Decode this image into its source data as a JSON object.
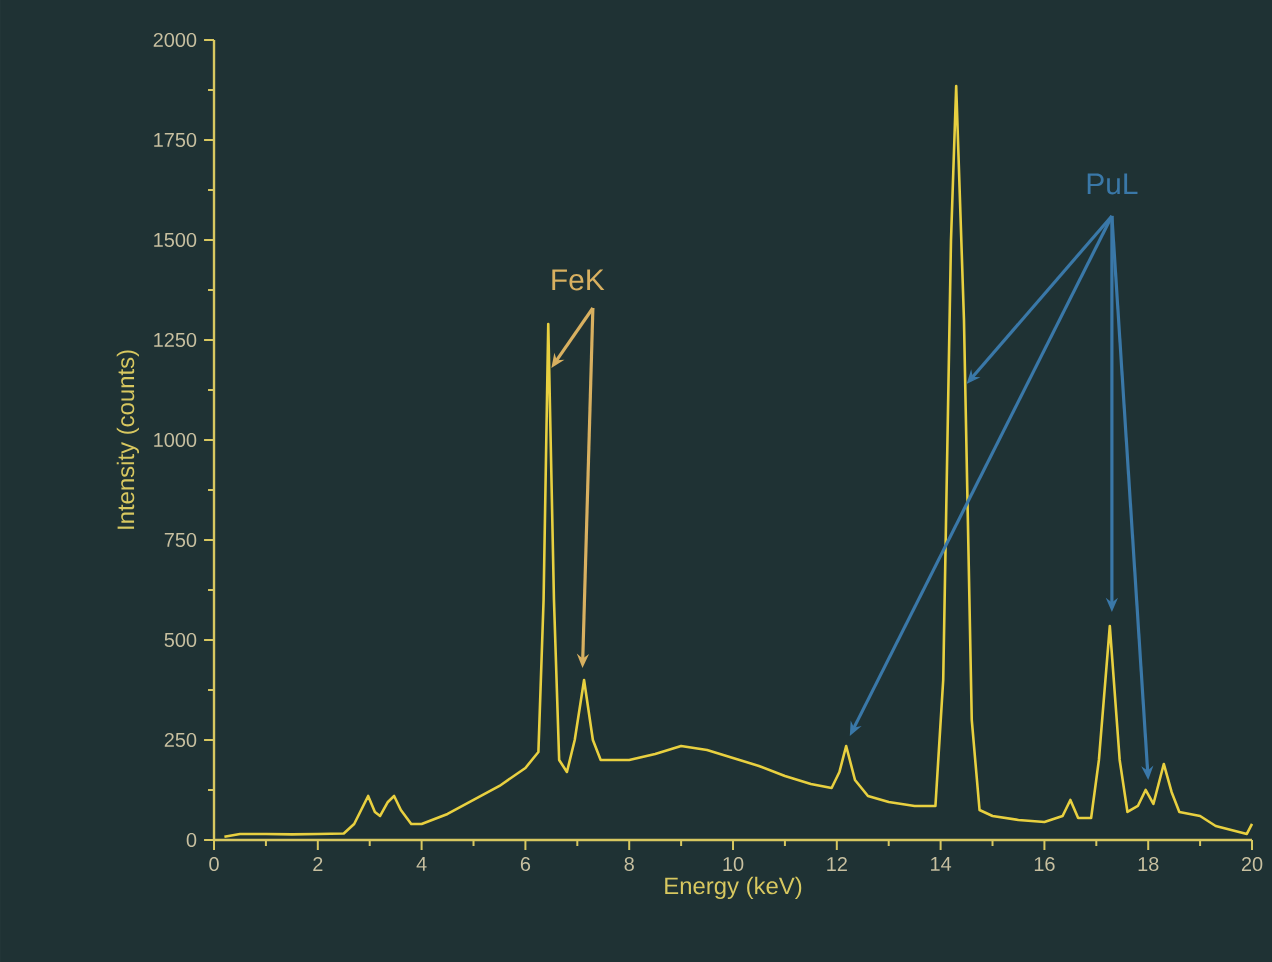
{
  "chart_data": {
    "type": "line",
    "xlabel": "Energy (keV)",
    "ylabel": "Intensity (counts)",
    "color": "#e8d040",
    "x": [
      0.2,
      0.5,
      1,
      1.5,
      2,
      2.5,
      2.7,
      2.97,
      3.1,
      3.2,
      3.35,
      3.47,
      3.6,
      3.8,
      4,
      4.5,
      5,
      5.5,
      6,
      6.25,
      6.35,
      6.44,
      6.55,
      6.65,
      6.8,
      6.95,
      7.13,
      7.3,
      7.45,
      8,
      8.5,
      9,
      9.5,
      10,
      10.5,
      11,
      11.5,
      11.9,
      12.05,
      12.18,
      12.35,
      12.6,
      13,
      13.5,
      13.9,
      14.05,
      14.2,
      14.3,
      14.45,
      14.6,
      14.75,
      15,
      15.5,
      16,
      16.35,
      16.5,
      16.65,
      16.9,
      17.05,
      17.26,
      17.45,
      17.6,
      17.8,
      17.95,
      18.1,
      18.3,
      18.45,
      18.6,
      18.8,
      19,
      19.3,
      19.6,
      19.9,
      20
    ],
    "values": [
      8,
      15,
      15,
      14,
      15,
      16,
      40,
      110,
      70,
      60,
      95,
      110,
      75,
      40,
      40,
      65,
      100,
      135,
      180,
      220,
      600,
      1290,
      600,
      200,
      170,
      250,
      400,
      250,
      200,
      200,
      215,
      235,
      225,
      205,
      185,
      160,
      140,
      130,
      170,
      235,
      150,
      110,
      95,
      85,
      85,
      400,
      1500,
      1885,
      1300,
      300,
      75,
      60,
      50,
      45,
      60,
      100,
      55,
      55,
      200,
      535,
      200,
      70,
      85,
      125,
      90,
      190,
      120,
      70,
      65,
      60,
      35,
      25,
      15,
      40
    ],
    "xlim": [
      0,
      20
    ],
    "ylim": [
      0,
      2000
    ],
    "xticks": [
      0,
      2,
      4,
      6,
      8,
      10,
      12,
      14,
      16,
      18,
      20
    ],
    "yticks": [
      0,
      250,
      500,
      750,
      1000,
      1250,
      1500,
      1750,
      2000
    ],
    "annotations": [
      {
        "text": "FeK",
        "x": 6.44,
        "y": 1290
      },
      {
        "text": "PuL",
        "x": 14.5,
        "y": 1140
      }
    ]
  }
}
